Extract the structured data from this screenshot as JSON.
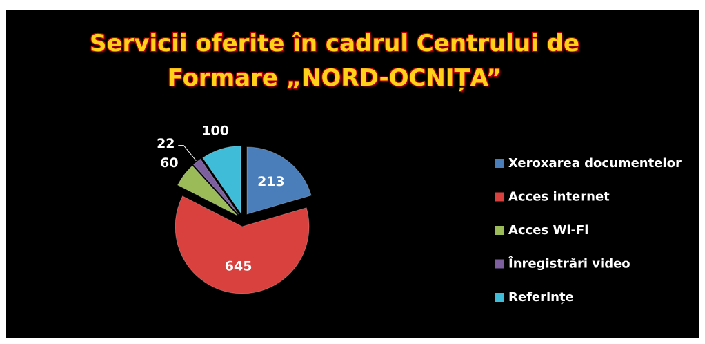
{
  "chart_data": {
    "type": "pie",
    "title": "Servicii oferite în cadrul  Centrului de Formare „NORD-OCNIȚA”",
    "categories": [
      "Xeroxarea documentelor",
      "Acces internet",
      "Acces Wi-Fi",
      "Înregistrări video",
      "Referințe"
    ],
    "values": [
      213,
      645,
      60,
      22,
      100
    ],
    "colors": [
      "#4a7ebb",
      "#d9413e",
      "#9bbb59",
      "#7d5fa0",
      "#3fbcd8"
    ],
    "legend": "right"
  }
}
